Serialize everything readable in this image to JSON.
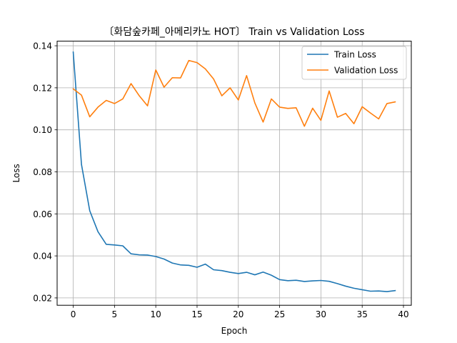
{
  "chart_data": {
    "type": "line",
    "title": "〔화담숲카페_아메리카노 HOT〕 Train vs Validation Loss",
    "xlabel": "Epoch",
    "ylabel": "Loss",
    "xlim": [
      -1.95,
      40.95
    ],
    "ylim": [
      0.0165,
      0.1422
    ],
    "xticks": [
      0,
      5,
      10,
      15,
      20,
      25,
      30,
      35,
      40
    ],
    "yticks": [
      0.02,
      0.04,
      0.06,
      0.08,
      0.1,
      0.12,
      0.14
    ],
    "ytick_labels": [
      "0.02",
      "0.04",
      "0.06",
      "0.08",
      "0.10",
      "0.12",
      "0.14"
    ],
    "grid": true,
    "legend_position": "top-right",
    "x": [
      0,
      1,
      2,
      3,
      4,
      5,
      6,
      7,
      8,
      9,
      10,
      11,
      12,
      13,
      14,
      15,
      16,
      17,
      18,
      19,
      20,
      21,
      22,
      23,
      24,
      25,
      26,
      27,
      28,
      29,
      30,
      31,
      32,
      33,
      34,
      35,
      36,
      37,
      38,
      39
    ],
    "series": [
      {
        "name": "Train Loss",
        "color": "#1f77b4",
        "values": [
          0.137,
          0.0835,
          0.0615,
          0.0515,
          0.0455,
          0.0452,
          0.0448,
          0.041,
          0.0405,
          0.0404,
          0.0397,
          0.0385,
          0.0366,
          0.0357,
          0.0355,
          0.0346,
          0.0361,
          0.0334,
          0.033,
          0.0322,
          0.0316,
          0.0322,
          0.031,
          0.0323,
          0.0308,
          0.0287,
          0.0282,
          0.0284,
          0.0278,
          0.0281,
          0.0283,
          0.0279,
          0.0268,
          0.0256,
          0.0246,
          0.0239,
          0.0232,
          0.0233,
          0.023,
          0.0235
        ]
      },
      {
        "name": "Validation Loss",
        "color": "#ff7f0e",
        "values": [
          0.1195,
          0.1165,
          0.1062,
          0.1108,
          0.114,
          0.1125,
          0.1147,
          0.122,
          0.1162,
          0.1114,
          0.1285,
          0.1203,
          0.1248,
          0.1247,
          0.133,
          0.132,
          0.129,
          0.1242,
          0.1162,
          0.12,
          0.1142,
          0.1258,
          0.1128,
          0.1037,
          0.1147,
          0.1108,
          0.1102,
          0.1105,
          0.1017,
          0.1103,
          0.1045,
          0.1185,
          0.106,
          0.1078,
          0.1029,
          0.111,
          0.108,
          0.1052,
          0.1125,
          0.1133
        ]
      }
    ]
  }
}
